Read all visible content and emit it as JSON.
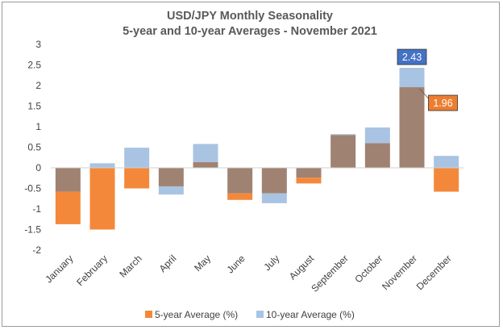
{
  "chart_data": {
    "type": "bar",
    "title": "USD/JPY Monthly Seasonality",
    "subtitle": "5-year and 10-year Averages - November 2021",
    "categories": [
      "January",
      "February",
      "March",
      "April",
      "May",
      "June",
      "July",
      "August",
      "September",
      "October",
      "November",
      "December"
    ],
    "ylim": [
      -2,
      3
    ],
    "yticks": [
      3,
      2.5,
      2,
      1.5,
      1,
      0.5,
      0,
      -0.5,
      -1,
      -1.5,
      -2
    ],
    "grid": false,
    "legend_position": "bottom",
    "series": [
      {
        "name": "5-year Average (%)",
        "color": "#f4883a",
        "values": [
          -1.37,
          -1.5,
          -0.5,
          -0.45,
          0.14,
          -0.78,
          -0.62,
          -0.38,
          0.8,
          0.6,
          1.96,
          -0.58
        ]
      },
      {
        "name": "10-year Average (%)",
        "color": "#a9c3e3",
        "values": [
          -0.58,
          0.11,
          0.49,
          -0.65,
          0.58,
          -0.62,
          -0.86,
          -0.24,
          0.82,
          0.98,
          2.43,
          0.29
        ]
      }
    ],
    "overlap_color": "#a08272",
    "annotations": [
      {
        "label": "2.43",
        "category": "November",
        "series": "10-year Average (%)",
        "color": "#4472c4"
      },
      {
        "label": "1.96",
        "category": "November",
        "series": "5-year Average (%)",
        "color": "#ed7d31"
      }
    ]
  }
}
